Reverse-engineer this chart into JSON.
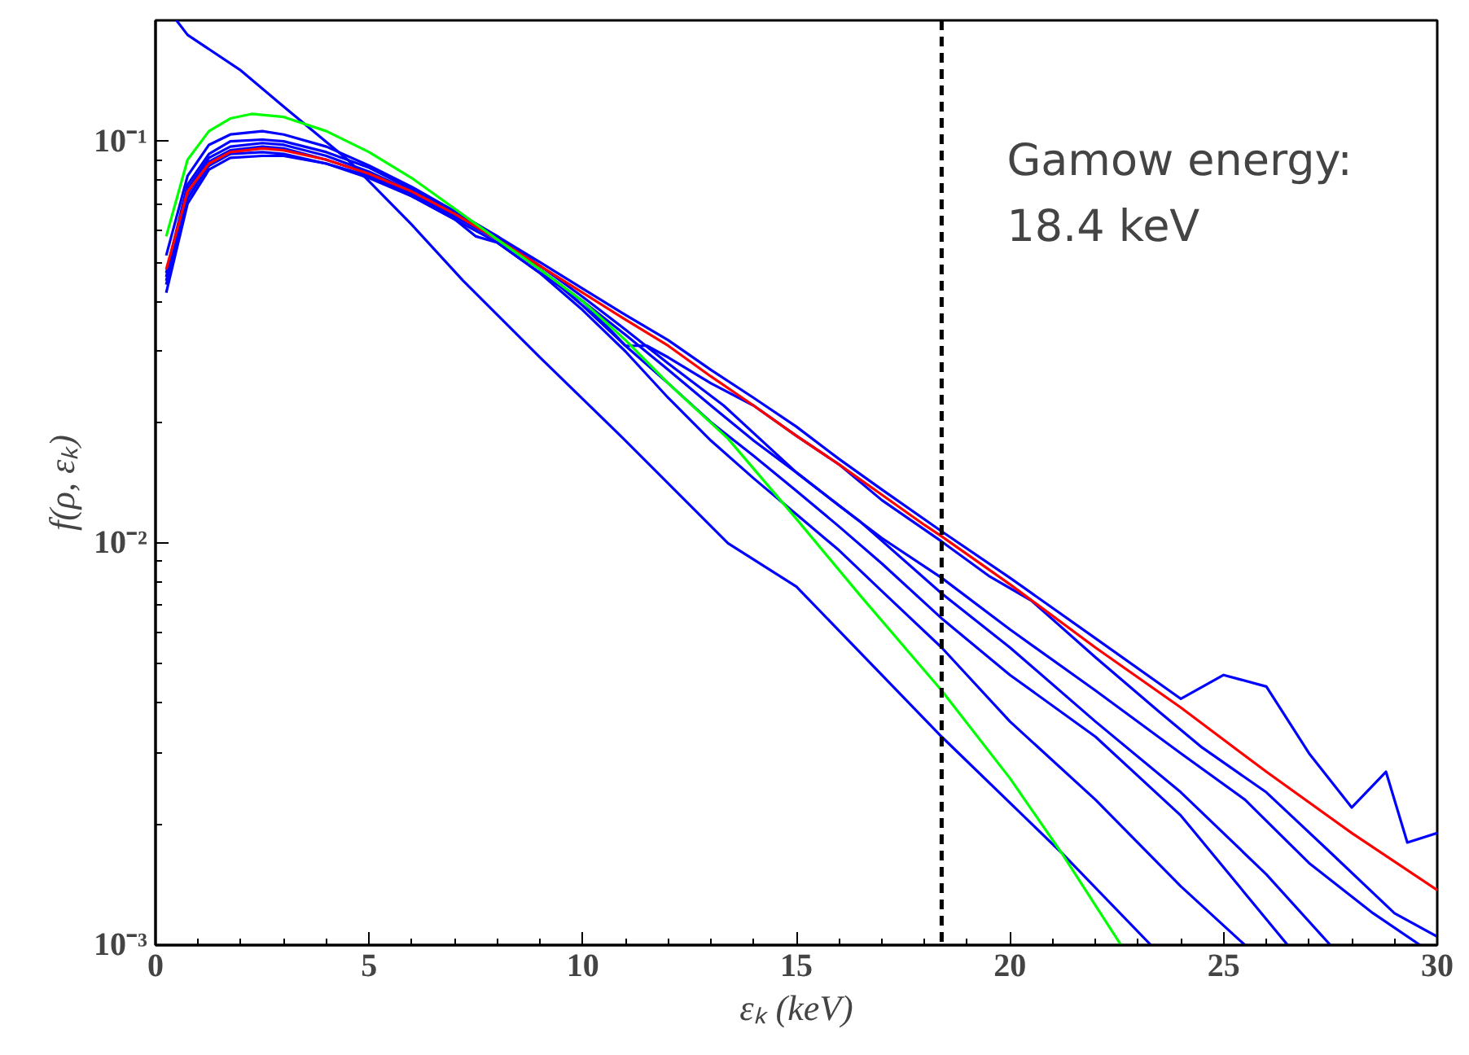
{
  "chart_data": {
    "type": "line",
    "xlabel": "εₖ (keV)",
    "ylabel": "f(ρ, εₖ)",
    "log": "y",
    "grid": false,
    "line_style": "solid",
    "marker": "none",
    "xlim": [
      0,
      30
    ],
    "xticks": [
      0,
      5,
      10,
      15,
      20,
      25,
      30
    ],
    "ylim": [
      0.001,
      0.2
    ],
    "yticks": [
      {
        "value": 0.001,
        "label": "10⁻³"
      },
      {
        "value": 0.01,
        "label": "10⁻²"
      },
      {
        "value": 0.1,
        "label": "10⁻¹"
      }
    ],
    "series": [
      {
        "color": "#0000ff",
        "x": [
          0.49,
          0.75,
          2,
          3,
          4.5,
          6,
          7.2,
          9,
          11,
          13.4,
          15,
          18.4,
          21.2,
          23.3
        ],
        "values": [
          0.2,
          0.184,
          0.15,
          0.122,
          0.09,
          0.062,
          0.045,
          0.029,
          0.018,
          0.01,
          0.0078,
          0.0033,
          0.0017,
          0.001
        ]
      },
      {
        "color": "#0000ff",
        "x": [
          0.25,
          0.75,
          1.25,
          1.75,
          2.5,
          3,
          4,
          5,
          6,
          7,
          8,
          9,
          10,
          11,
          12,
          13,
          14,
          15,
          16,
          17,
          18.4,
          20,
          22,
          24,
          25,
          26,
          27,
          28,
          28.8,
          29.3,
          30
        ],
        "values": [
          0.052,
          0.082,
          0.098,
          0.104,
          0.106,
          0.104,
          0.097,
          0.087,
          0.077,
          0.067,
          0.058,
          0.05,
          0.043,
          0.037,
          0.032,
          0.027,
          0.023,
          0.0195,
          0.0162,
          0.0136,
          0.0107,
          0.0082,
          0.0058,
          0.0041,
          0.0047,
          0.0044,
          0.003,
          0.0022,
          0.0027,
          0.0018,
          0.0019
        ]
      },
      {
        "color": "#0000ff",
        "x": [
          0.25,
          0.75,
          1.25,
          1.75,
          2.5,
          3,
          4,
          5,
          6,
          7,
          7.5,
          8,
          9,
          10,
          11,
          11.5,
          12,
          13,
          14,
          15,
          16,
          17,
          18.4,
          19.5,
          20.5,
          22,
          23.5,
          24.5,
          26,
          27.5,
          29,
          30
        ],
        "values": [
          0.044,
          0.072,
          0.087,
          0.093,
          0.094,
          0.093,
          0.088,
          0.081,
          0.073,
          0.064,
          0.058,
          0.056,
          0.047,
          0.04,
          0.031,
          0.031,
          0.029,
          0.025,
          0.022,
          0.0185,
          0.0157,
          0.0128,
          0.0101,
          0.0083,
          0.0072,
          0.0052,
          0.0038,
          0.0031,
          0.0024,
          0.0017,
          0.0012,
          0.00105
        ]
      },
      {
        "color": "#0000ff",
        "x": [
          0.25,
          0.75,
          1.25,
          1.75,
          2.5,
          3,
          4,
          5,
          6,
          7,
          8,
          9,
          10,
          11,
          12,
          13,
          14,
          15,
          16,
          17,
          18.4,
          20,
          22,
          24,
          25.5,
          27,
          28.5,
          29.6
        ],
        "values": [
          0.046,
          0.076,
          0.091,
          0.097,
          0.099,
          0.098,
          0.092,
          0.084,
          0.075,
          0.066,
          0.058,
          0.048,
          0.04,
          0.033,
          0.027,
          0.022,
          0.018,
          0.015,
          0.0124,
          0.0103,
          0.0082,
          0.0061,
          0.0043,
          0.003,
          0.0023,
          0.0016,
          0.0012,
          0.001
        ]
      },
      {
        "color": "#0000ff",
        "x": [
          0.25,
          0.75,
          1.25,
          1.75,
          2.5,
          3,
          4,
          5,
          6,
          7,
          8,
          9,
          10,
          11,
          12,
          13,
          14,
          15,
          16,
          17,
          18.4,
          20,
          22,
          24,
          26.5
        ],
        "values": [
          0.045,
          0.074,
          0.089,
          0.095,
          0.097,
          0.096,
          0.09,
          0.083,
          0.074,
          0.065,
          0.057,
          0.048,
          0.039,
          0.031,
          0.025,
          0.02,
          0.0165,
          0.0135,
          0.011,
          0.0089,
          0.0065,
          0.0047,
          0.0033,
          0.0021,
          0.001
        ]
      },
      {
        "color": "#0000ff",
        "x": [
          0.25,
          0.75,
          1.25,
          1.75,
          2.5,
          3,
          4,
          5,
          6,
          7,
          8,
          9,
          10,
          11,
          12,
          13,
          14,
          15,
          16,
          17,
          18.4,
          20,
          22,
          24,
          25.5
        ],
        "values": [
          0.042,
          0.07,
          0.085,
          0.091,
          0.092,
          0.092,
          0.088,
          0.082,
          0.073,
          0.064,
          0.056,
          0.047,
          0.038,
          0.03,
          0.023,
          0.018,
          0.0145,
          0.0118,
          0.0096,
          0.0076,
          0.0055,
          0.0036,
          0.0023,
          0.0014,
          0.001
        ]
      },
      {
        "color": "#0000ff",
        "x": [
          0.25,
          0.75,
          1.25,
          1.75,
          2.5,
          3,
          4,
          5,
          6,
          7,
          8,
          9,
          10,
          11,
          12,
          13.3,
          15,
          16.5,
          18.4,
          20,
          22,
          24,
          26,
          27.5
        ],
        "values": [
          0.047,
          0.078,
          0.093,
          0.1,
          0.101,
          0.1,
          0.094,
          0.086,
          0.076,
          0.067,
          0.058,
          0.049,
          0.041,
          0.034,
          0.028,
          0.022,
          0.015,
          0.0113,
          0.0075,
          0.0055,
          0.0036,
          0.0024,
          0.0015,
          0.001
        ]
      },
      {
        "color": "#ff0000",
        "x": [
          0.25,
          0.75,
          1.25,
          1.75,
          2.5,
          3,
          4,
          5,
          6,
          7,
          8,
          9,
          10,
          11,
          12,
          13,
          14,
          15,
          16,
          17,
          18,
          18.4,
          20,
          22,
          24,
          26,
          28,
          30
        ],
        "values": [
          0.048,
          0.075,
          0.088,
          0.094,
          0.096,
          0.095,
          0.09,
          0.083,
          0.075,
          0.066,
          0.057,
          0.049,
          0.042,
          0.036,
          0.031,
          0.026,
          0.022,
          0.0185,
          0.0157,
          0.0132,
          0.0111,
          0.0104,
          0.0079,
          0.0055,
          0.0039,
          0.0027,
          0.0019,
          0.00137
        ]
      },
      {
        "color": "#00ff00",
        "x": [
          0.25,
          0.75,
          1.25,
          1.75,
          2.25,
          3,
          4,
          5,
          6,
          7,
          8,
          9,
          10,
          11,
          12,
          13.4,
          15,
          16.5,
          18.4,
          20,
          21.2,
          22.6
        ],
        "values": [
          0.058,
          0.09,
          0.106,
          0.114,
          0.117,
          0.115,
          0.106,
          0.094,
          0.081,
          0.068,
          0.057,
          0.048,
          0.04,
          0.032,
          0.025,
          0.0182,
          0.0115,
          0.0074,
          0.0043,
          0.0026,
          0.0017,
          0.001
        ]
      }
    ],
    "ref_lines": [
      {
        "axis": "x",
        "value": 18.4,
        "color": "#000000",
        "line_style": "dashed",
        "label": "Gamow energy:\n18.4 keV"
      }
    ]
  }
}
